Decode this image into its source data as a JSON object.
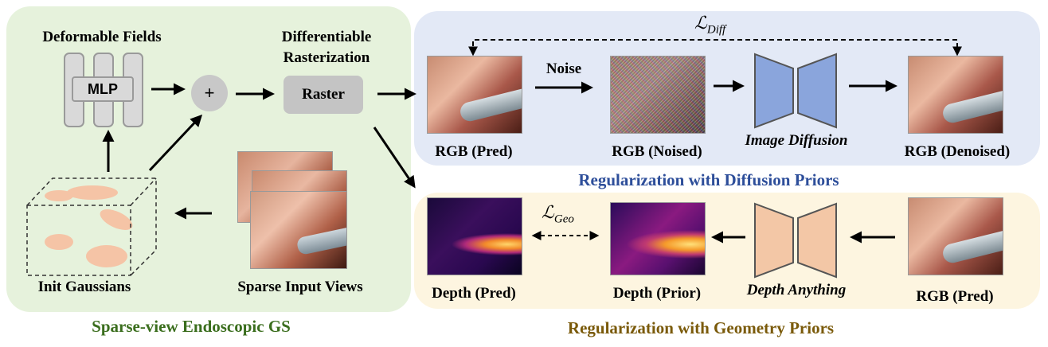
{
  "left_panel": {
    "caption": "Sparse-view Endoscopic GS",
    "deformable_fields": "Deformable Fields",
    "mlp": "MLP",
    "plus": "+",
    "rasterization_line1": "Differentiable",
    "rasterization_line2": "Rasterization",
    "raster": "Raster",
    "init_gaussians": "Init Gaussians",
    "sparse_input_views": "Sparse Input Views"
  },
  "diffusion_panel": {
    "caption": "Regularization with Diffusion Priors",
    "loss_main": "ℒ",
    "loss_sub": "Diff",
    "noise": "Noise",
    "rgb_pred": "RGB (Pred)",
    "rgb_noised": "RGB (Noised)",
    "image_diffusion": "Image Diffusion",
    "rgb_denoised": "RGB (Denoised)"
  },
  "geometry_panel": {
    "caption": "Regularization with Geometry Priors",
    "loss_main": "ℒ",
    "loss_sub": "Geo",
    "depth_pred": "Depth (Pred)",
    "depth_prior": "Depth (Prior)",
    "depth_anything": "Depth Anything",
    "rgb_pred": "RGB (Pred)"
  },
  "colors": {
    "left_panel_bg": "#e6f2dc",
    "diffusion_panel_bg": "#e3e9f6",
    "geometry_panel_bg": "#fdf5e0",
    "left_caption": "#3b6e1e",
    "diffusion_caption": "#2d4e9a",
    "geometry_caption": "#7a5a0a",
    "diffusion_net": "#8aa5dc",
    "depth_net": "#f3c7a6"
  }
}
